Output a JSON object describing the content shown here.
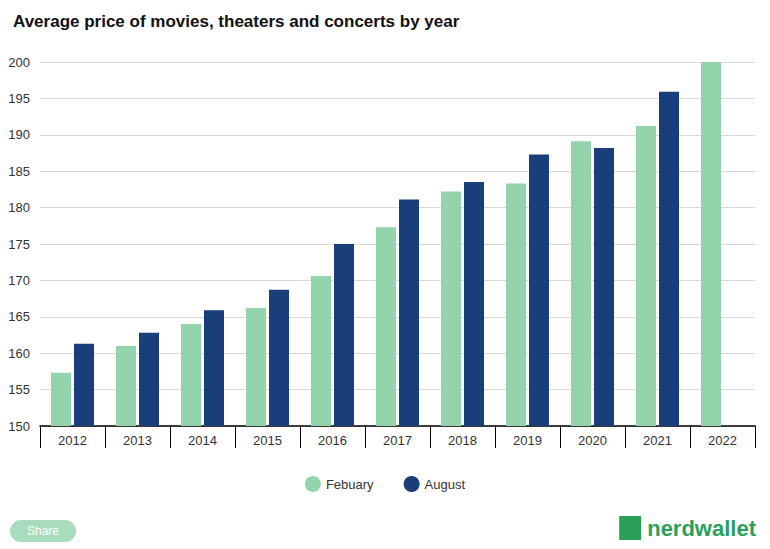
{
  "chart_data": {
    "type": "bar",
    "title": "Average price of movies, theaters and concerts by year",
    "categories": [
      "2012",
      "2013",
      "2014",
      "2015",
      "2016",
      "2017",
      "2018",
      "2019",
      "2020",
      "2021",
      "2022"
    ],
    "series": [
      {
        "name": "Febuary",
        "color": "#93d4ad",
        "values": [
          157.3,
          161.0,
          164.0,
          166.2,
          170.6,
          177.3,
          182.2,
          183.3,
          189.1,
          191.2,
          200.0
        ]
      },
      {
        "name": "August",
        "color": "#1a3e79",
        "values": [
          161.3,
          162.8,
          165.9,
          168.7,
          175.0,
          181.1,
          183.5,
          187.3,
          188.2,
          195.9,
          null
        ]
      }
    ],
    "ylim": [
      150,
      200
    ],
    "yticks": [
      150,
      155,
      160,
      165,
      170,
      175,
      180,
      185,
      190,
      195,
      200
    ],
    "grid": true,
    "legend": "bottom",
    "annotations": [
      "Share",
      "nerdwallet"
    ]
  }
}
